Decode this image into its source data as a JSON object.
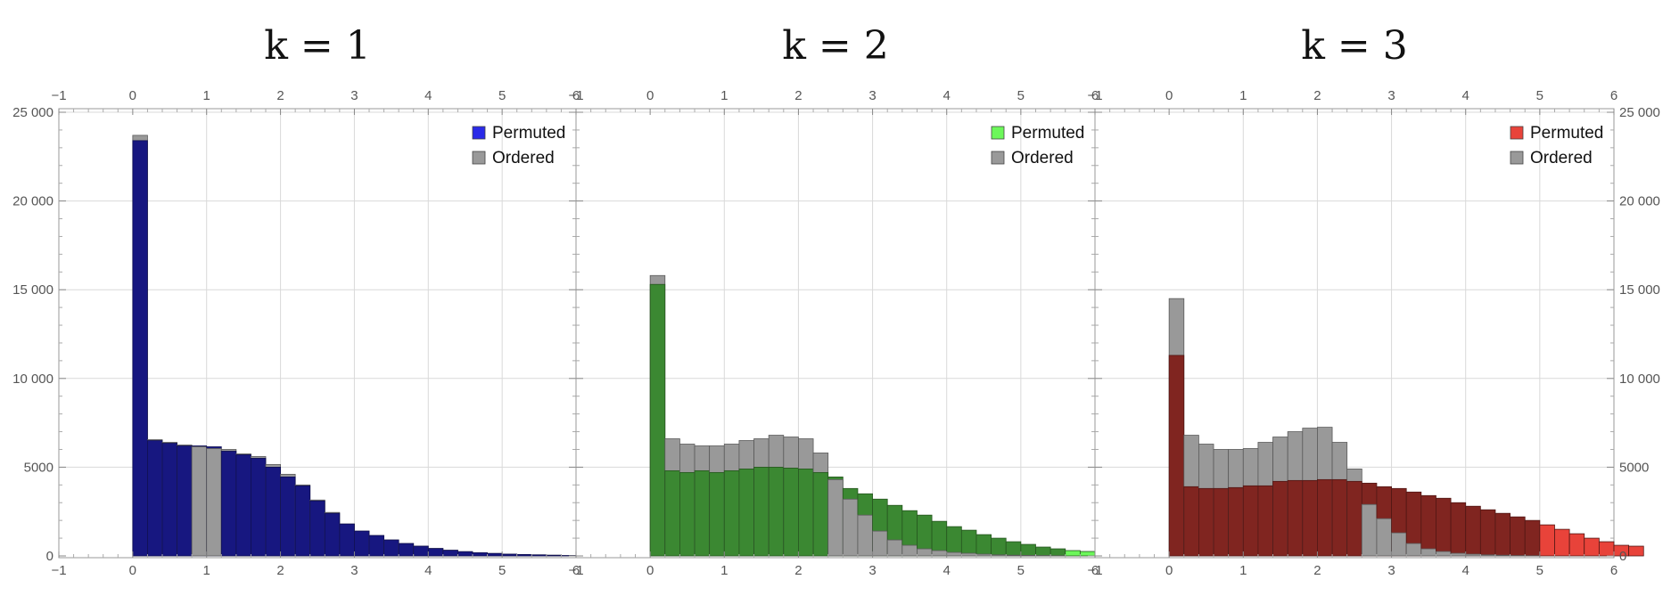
{
  "chart_data": [
    {
      "type": "bar",
      "title": "k = 1",
      "xlabel": "",
      "ylabel": "",
      "xlim": [
        -1,
        6
      ],
      "ylim": [
        0,
        25000
      ],
      "bin_width": 0.2,
      "bin_start": 0,
      "x_ticks": [
        "−1",
        "0",
        "1",
        "2",
        "3",
        "4",
        "5",
        "6"
      ],
      "y_ticks": [
        "0",
        "5000",
        "10 000",
        "15 000",
        "20 000",
        "25 000"
      ],
      "legend": {
        "position": "top-right"
      },
      "grid": true,
      "series": [
        {
          "name": "Permuted",
          "color": "#2a2ae8",
          "values": [
            23400,
            6500,
            6350,
            6200,
            6200,
            6150,
            5900,
            5700,
            5500,
            5000,
            4450,
            3950,
            3100,
            2400,
            1800,
            1400,
            1150,
            900,
            700,
            550,
            420,
            320,
            240,
            180,
            140,
            100,
            80,
            60,
            40,
            20
          ]
        },
        {
          "name": "Ordered",
          "color": "#999999",
          "values": [
            23700,
            6550,
            6400,
            6250,
            6150,
            6050,
            6000,
            5750,
            5600,
            5150,
            4600,
            4000,
            3150,
            2450,
            1800,
            1400,
            1150,
            900,
            700,
            550,
            420,
            320,
            240,
            180,
            140,
            100,
            80,
            60,
            40,
            20
          ]
        }
      ]
    },
    {
      "type": "bar",
      "title": "k = 2",
      "xlabel": "",
      "ylabel": "",
      "xlim": [
        -1,
        6
      ],
      "ylim": [
        0,
        25000
      ],
      "bin_width": 0.2,
      "bin_start": 0,
      "x_ticks": [
        "−1",
        "0",
        "1",
        "2",
        "3",
        "4",
        "5",
        "6"
      ],
      "y_ticks": [
        "0",
        "5000",
        "10 000",
        "15 000",
        "20 000",
        "25 000"
      ],
      "legend": {
        "position": "top-right"
      },
      "grid": true,
      "series": [
        {
          "name": "Permuted",
          "color": "#6cf75a",
          "values": [
            15300,
            4800,
            4700,
            4800,
            4700,
            4800,
            4900,
            5000,
            5000,
            4950,
            4900,
            4700,
            4450,
            3800,
            3500,
            3200,
            2850,
            2550,
            2300,
            1950,
            1650,
            1450,
            1200,
            1000,
            800,
            650,
            500,
            400,
            300,
            250
          ]
        },
        {
          "name": "Ordered",
          "color": "#999999",
          "values": [
            15800,
            6600,
            6300,
            6200,
            6200,
            6300,
            6500,
            6600,
            6800,
            6700,
            6600,
            5800,
            4300,
            3200,
            2300,
            1400,
            900,
            600,
            400,
            300,
            200,
            150,
            100,
            60,
            40,
            30,
            20,
            10,
            0,
            0
          ]
        }
      ]
    },
    {
      "type": "bar",
      "title": "k = 3",
      "xlabel": "",
      "ylabel": "",
      "xlim": [
        -1,
        6
      ],
      "ylim": [
        0,
        25000
      ],
      "bin_width": 0.2,
      "bin_start": 0,
      "x_ticks": [
        "−1",
        "0",
        "1",
        "2",
        "3",
        "4",
        "5",
        "6"
      ],
      "y_ticks": [
        "0",
        "5000",
        "10 000",
        "15 000",
        "20 000",
        "25 000"
      ],
      "legend": {
        "position": "top-right"
      },
      "grid": true,
      "series": [
        {
          "name": "Permuted",
          "color": "#e8433a",
          "values": [
            11300,
            3900,
            3800,
            3800,
            3850,
            3950,
            3950,
            4200,
            4250,
            4250,
            4300,
            4300,
            4200,
            4100,
            3900,
            3800,
            3600,
            3400,
            3250,
            3000,
            2800,
            2600,
            2400,
            2200,
            2000,
            1750,
            1500,
            1250,
            1000,
            800,
            600,
            550
          ]
        },
        {
          "name": "Ordered",
          "color": "#999999",
          "values": [
            14500,
            6800,
            6300,
            6000,
            6000,
            6050,
            6400,
            6700,
            7000,
            7200,
            7250,
            6400,
            4900,
            2900,
            2100,
            1300,
            700,
            400,
            250,
            150,
            100,
            60,
            40,
            20,
            10,
            0,
            0,
            0,
            0,
            0,
            0,
            0
          ]
        }
      ]
    }
  ]
}
